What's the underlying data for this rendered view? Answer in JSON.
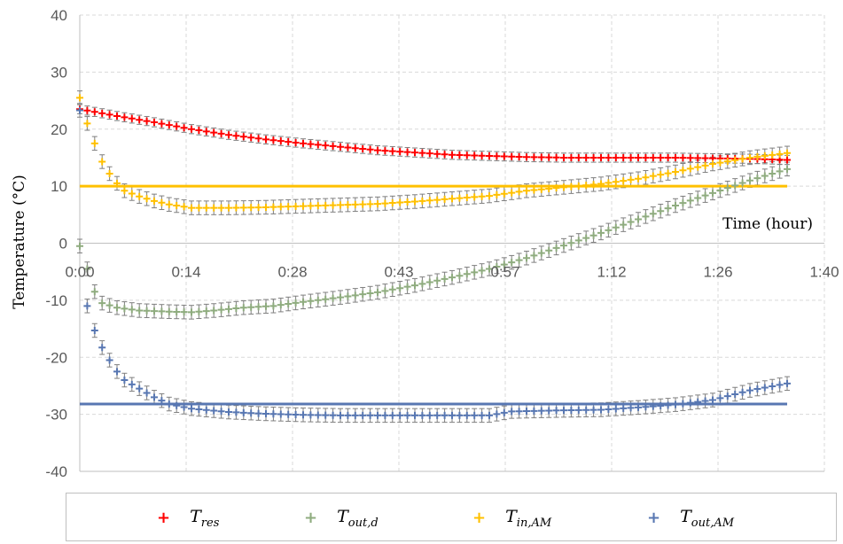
{
  "chart_data": {
    "type": "line",
    "xlabel": "Time (hour)",
    "ylabel": "Temperature (°C)",
    "ylim": [
      -40,
      40
    ],
    "xlim_minutes": [
      0,
      100
    ],
    "yticks": [
      "40",
      "30",
      "20",
      "10",
      "0",
      "-10",
      "-20",
      "-30",
      "-40"
    ],
    "xticks": [
      "0:00",
      "0:14",
      "0:28",
      "0:43",
      "0:57",
      "1:12",
      "1:26",
      "1:40"
    ],
    "grid": true,
    "legend_position": "bottom",
    "series": [
      {
        "key": "res",
        "name": "T",
        "sub": "res",
        "color": "#ff0000",
        "error": 0.8,
        "points": [
          [
            0,
            23.5
          ],
          [
            5,
            22.3
          ],
          [
            10,
            21.2
          ],
          [
            15,
            20.0
          ],
          [
            20,
            19.0
          ],
          [
            25,
            18.2
          ],
          [
            30,
            17.5
          ],
          [
            35,
            16.9
          ],
          [
            40,
            16.3
          ],
          [
            45,
            15.9
          ],
          [
            50,
            15.5
          ],
          [
            55,
            15.3
          ],
          [
            60,
            15.1
          ],
          [
            65,
            15.0
          ],
          [
            70,
            15.0
          ],
          [
            75,
            15.0
          ],
          [
            80,
            15.0
          ],
          [
            85,
            14.9
          ],
          [
            90,
            14.8
          ],
          [
            95,
            14.6
          ]
        ]
      },
      {
        "key": "out_d",
        "name": "T",
        "sub": "out,d",
        "color": "#8fac7f",
        "error": 1.2,
        "points": [
          [
            0,
            -0.5
          ],
          [
            1,
            -4.5
          ],
          [
            2,
            -8.5
          ],
          [
            3,
            -10.5
          ],
          [
            5,
            -11.3
          ],
          [
            8,
            -11.8
          ],
          [
            12,
            -12.0
          ],
          [
            15,
            -12.1
          ],
          [
            18,
            -11.8
          ],
          [
            22,
            -11.3
          ],
          [
            26,
            -11.0
          ],
          [
            30,
            -10.3
          ],
          [
            35,
            -9.5
          ],
          [
            40,
            -8.6
          ],
          [
            45,
            -7.4
          ],
          [
            50,
            -6.0
          ],
          [
            55,
            -4.5
          ],
          [
            60,
            -2.6
          ],
          [
            65,
            -0.4
          ],
          [
            70,
            1.8
          ],
          [
            75,
            4.2
          ],
          [
            80,
            6.6
          ],
          [
            85,
            8.8
          ],
          [
            90,
            11.0
          ],
          [
            95,
            13.0
          ]
        ]
      },
      {
        "key": "in_am",
        "name": "T",
        "sub": "in,AM",
        "color": "#ffc000",
        "error": 1.2,
        "points": [
          [
            0,
            25.5
          ],
          [
            1,
            21.0
          ],
          [
            2,
            17.5
          ],
          [
            3,
            14.3
          ],
          [
            4,
            12.2
          ],
          [
            5,
            10.5
          ],
          [
            6,
            9.2
          ],
          [
            8,
            8.2
          ],
          [
            10,
            7.4
          ],
          [
            12,
            6.8
          ],
          [
            15,
            6.2
          ],
          [
            20,
            6.2
          ],
          [
            25,
            6.3
          ],
          [
            30,
            6.5
          ],
          [
            35,
            6.7
          ],
          [
            40,
            6.9
          ],
          [
            45,
            7.3
          ],
          [
            50,
            7.8
          ],
          [
            55,
            8.3
          ],
          [
            60,
            9.2
          ],
          [
            65,
            9.8
          ],
          [
            70,
            10.4
          ],
          [
            75,
            11.3
          ],
          [
            80,
            12.5
          ],
          [
            85,
            13.9
          ],
          [
            90,
            15.0
          ],
          [
            95,
            15.8
          ]
        ]
      },
      {
        "key": "out_am",
        "name": "T",
        "sub": "out,AM",
        "color": "#5877b2",
        "error": 1.2,
        "points": [
          [
            0,
            23.3
          ],
          [
            1,
            -11.0
          ],
          [
            2,
            -15.3
          ],
          [
            3,
            -18.3
          ],
          [
            4,
            -20.5
          ],
          [
            5,
            -22.5
          ],
          [
            6,
            -24.0
          ],
          [
            8,
            -25.5
          ],
          [
            10,
            -27.0
          ],
          [
            12,
            -28.2
          ],
          [
            15,
            -29.0
          ],
          [
            20,
            -29.6
          ],
          [
            25,
            -29.9
          ],
          [
            30,
            -30.1
          ],
          [
            35,
            -30.2
          ],
          [
            40,
            -30.2
          ],
          [
            45,
            -30.2
          ],
          [
            50,
            -30.2
          ],
          [
            55,
            -30.2
          ],
          [
            58,
            -29.5
          ],
          [
            65,
            -29.3
          ],
          [
            70,
            -29.2
          ],
          [
            75,
            -28.8
          ],
          [
            80,
            -28.3
          ],
          [
            85,
            -27.5
          ],
          [
            90,
            -25.8
          ],
          [
            95,
            -24.6
          ]
        ]
      }
    ],
    "reference_lines": [
      {
        "key": "in_am_set",
        "color": "#ffc000",
        "y": 10,
        "x": [
          0,
          95
        ]
      },
      {
        "key": "out_am_set",
        "color": "#5877b2",
        "y": -28.2,
        "x": [
          0,
          95
        ]
      }
    ]
  },
  "legend": [
    {
      "marker": "+",
      "color": "#ff0000",
      "base": "T",
      "sub": "res"
    },
    {
      "marker": "+",
      "color": "#8fac7f",
      "base": "T",
      "sub": "out,d"
    },
    {
      "marker": "+",
      "color": "#ffc000",
      "base": "T",
      "sub": "in,AM"
    },
    {
      "marker": "+",
      "color": "#5877b2",
      "base": "T",
      "sub": "out,AM"
    }
  ]
}
